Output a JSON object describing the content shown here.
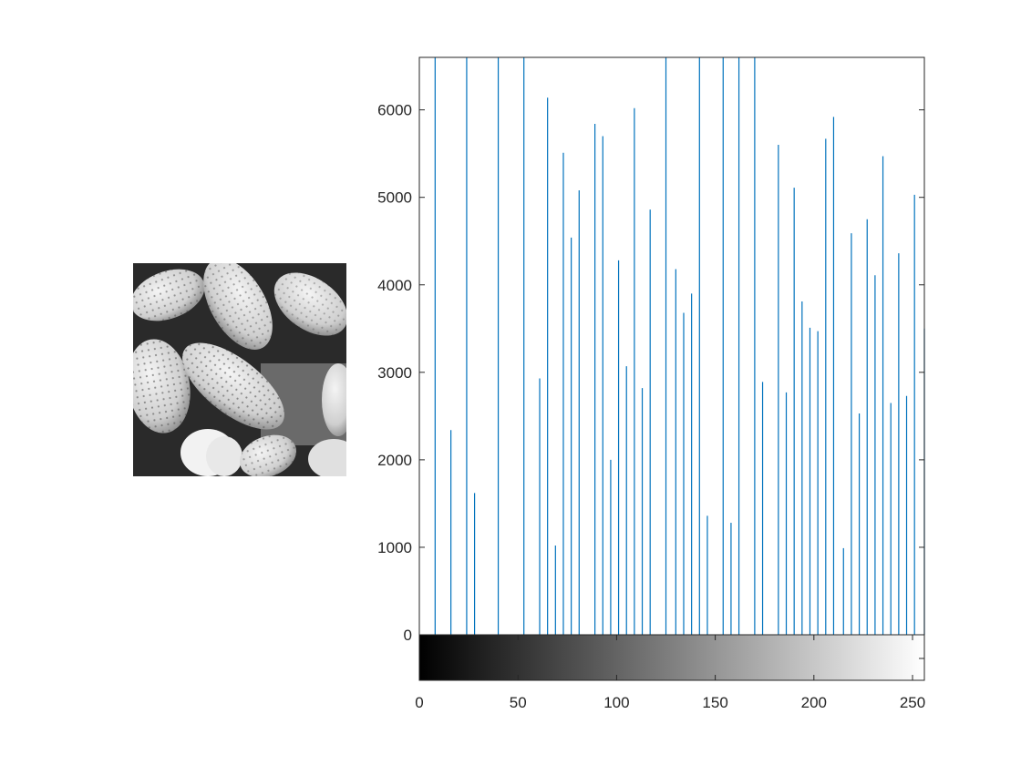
{
  "image_panel": {
    "icon": "grayscale-pollen-image"
  },
  "chart_data": {
    "type": "bar",
    "title": "",
    "xlabel": "",
    "ylabel": "",
    "xlim": [
      0,
      256
    ],
    "ylim": [
      -550,
      6600
    ],
    "grid": false,
    "stem_color": "#0072BD",
    "x": [
      8,
      16,
      24,
      28,
      40,
      53,
      61,
      65,
      69,
      73,
      77,
      81,
      89,
      93,
      97,
      101,
      105,
      109,
      113,
      117,
      125,
      130,
      134,
      138,
      142,
      146,
      154,
      158,
      162,
      170,
      174,
      182,
      186,
      190,
      194,
      198,
      202,
      206,
      210,
      215,
      219,
      223,
      227,
      231,
      235,
      239,
      243,
      247,
      251,
      256
    ],
    "values": [
      6600,
      2340,
      6600,
      1620,
      6600,
      6600,
      2930,
      6140,
      1020,
      5510,
      4540,
      5080,
      5840,
      5700,
      2000,
      4280,
      3070,
      6020,
      2820,
      4860,
      6600,
      4180,
      3680,
      3900,
      6600,
      1360,
      6600,
      1280,
      6600,
      6600,
      2890,
      5600,
      2770,
      5110,
      3810,
      3510,
      3470,
      5670,
      5920,
      990,
      4590,
      2530,
      4750,
      4110,
      5470,
      2650,
      4360,
      2730,
      5030,
      3500
    ],
    "x_ticks": [
      "0",
      "50",
      "100",
      "150",
      "200",
      "250"
    ],
    "y_ticks": [
      "0",
      "1000",
      "2000",
      "3000",
      "4000",
      "5000",
      "6000"
    ],
    "colorbar": "grayscale 0-255"
  }
}
